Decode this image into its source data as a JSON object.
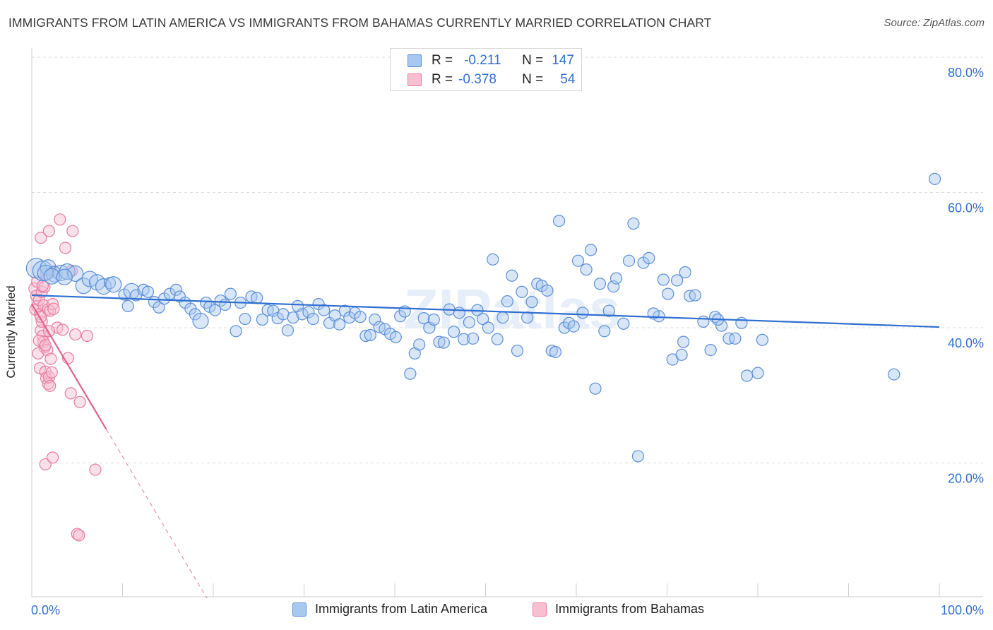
{
  "title": "IMMIGRANTS FROM LATIN AMERICA VS IMMIGRANTS FROM BAHAMAS CURRENTLY MARRIED CORRELATION CHART",
  "source": "Source: ZipAtlas.com",
  "watermark": "ZIPatlas",
  "legend": {
    "rows": [
      {
        "r_label": "R =",
        "r_value": "-0.211",
        "n_label": "N =",
        "n_value": "147"
      },
      {
        "r_label": "R =",
        "r_value": "-0.378",
        "n_label": "N =",
        "n_value": "54"
      }
    ]
  },
  "colors": {
    "blue_fill": "#a9c8f0",
    "blue_stroke": "#5b8fd8",
    "blue_line": "#2f6fd1",
    "pink_fill": "#f7bfd0",
    "pink_stroke": "#e87aa0",
    "pink_line": "#e0608e",
    "tick_label": "#2f6fd1",
    "grid": "#dcdcdc"
  },
  "chart_data": {
    "type": "scatter",
    "title": "IMMIGRANTS FROM LATIN AMERICA VS IMMIGRANTS FROM BAHAMAS CURRENTLY MARRIED CORRELATION CHART",
    "xlabel": "",
    "ylabel": "Currently Married",
    "xlim": [
      0,
      100
    ],
    "ylim": [
      0,
      80
    ],
    "x_tick_labels": [
      "0.0%",
      "100.0%"
    ],
    "y_ticks": [
      20,
      40,
      60,
      80
    ],
    "y_tick_labels": [
      "20.0%",
      "40.0%",
      "60.0%",
      "80.0%"
    ],
    "grid": true,
    "legend_position": "top-center",
    "series": [
      {
        "name": "Immigrants from Latin America",
        "trend": {
          "x": [
            0,
            100
          ],
          "y": [
            44.8,
            40.1
          ]
        },
        "points": [
          [
            0.5,
            48.8,
            3
          ],
          [
            1.2,
            48.4,
            3
          ],
          [
            1.8,
            48.9,
            2
          ],
          [
            2.5,
            47.9,
            2
          ],
          [
            3.2,
            48.1,
            2
          ],
          [
            3.9,
            48.3,
            2
          ],
          [
            1.5,
            48.1,
            2
          ],
          [
            2.2,
            47.6,
            2
          ],
          [
            4.8,
            48.0,
            2
          ],
          [
            3.6,
            47.5,
            2
          ],
          [
            5.7,
            46.2,
            2
          ],
          [
            6.4,
            47.2,
            2
          ],
          [
            7.2,
            46.7,
            2
          ],
          [
            7.9,
            46.1,
            2
          ],
          [
            8.6,
            46.6,
            1
          ],
          [
            9.0,
            46.4,
            2
          ],
          [
            10.2,
            44.9,
            1
          ],
          [
            10.6,
            43.2,
            1
          ],
          [
            11.0,
            45.4,
            2
          ],
          [
            11.5,
            44.8,
            1
          ],
          [
            12.3,
            45.6,
            1
          ],
          [
            12.8,
            45.3,
            1
          ],
          [
            13.5,
            43.8,
            1
          ],
          [
            14.0,
            43.0,
            1
          ],
          [
            14.6,
            44.3,
            1
          ],
          [
            15.2,
            45.0,
            1
          ],
          [
            15.9,
            45.6,
            1
          ],
          [
            16.3,
            44.6,
            1
          ],
          [
            16.9,
            43.7,
            1
          ],
          [
            17.5,
            42.8,
            1
          ],
          [
            18.0,
            42.0,
            1
          ],
          [
            18.6,
            41.0,
            2
          ],
          [
            19.2,
            43.7,
            1
          ],
          [
            19.6,
            43.1,
            1
          ],
          [
            20.2,
            42.6,
            1
          ],
          [
            20.8,
            44.0,
            1
          ],
          [
            21.3,
            43.4,
            1
          ],
          [
            21.9,
            45.0,
            1
          ],
          [
            22.5,
            39.5,
            1
          ],
          [
            23.0,
            43.7,
            1
          ],
          [
            23.5,
            41.3,
            1
          ],
          [
            24.2,
            44.6,
            1
          ],
          [
            24.8,
            44.4,
            1
          ],
          [
            25.4,
            41.2,
            1
          ],
          [
            26.0,
            42.6,
            1
          ],
          [
            26.6,
            42.5,
            1
          ],
          [
            27.1,
            41.4,
            1
          ],
          [
            27.7,
            42.0,
            1
          ],
          [
            28.2,
            39.6,
            1
          ],
          [
            28.8,
            41.5,
            1
          ],
          [
            29.3,
            43.2,
            1
          ],
          [
            29.8,
            42.0,
            1
          ],
          [
            30.5,
            42.3,
            1
          ],
          [
            31.0,
            41.3,
            1
          ],
          [
            31.6,
            43.5,
            1
          ],
          [
            32.2,
            42.6,
            1
          ],
          [
            32.8,
            40.7,
            1
          ],
          [
            33.4,
            41.8,
            1
          ],
          [
            33.9,
            40.5,
            1
          ],
          [
            34.5,
            42.5,
            1
          ],
          [
            35.0,
            41.5,
            1
          ],
          [
            35.6,
            42.2,
            1
          ],
          [
            36.2,
            41.6,
            1
          ],
          [
            36.8,
            38.8,
            1
          ],
          [
            37.3,
            38.9,
            1
          ],
          [
            37.8,
            41.2,
            1
          ],
          [
            38.3,
            40.1,
            1
          ],
          [
            38.9,
            39.8,
            1
          ],
          [
            39.5,
            39.1,
            1
          ],
          [
            40.1,
            38.6,
            1
          ],
          [
            40.6,
            41.7,
            1
          ],
          [
            41.1,
            42.4,
            1
          ],
          [
            41.7,
            33.2,
            1
          ],
          [
            42.2,
            36.2,
            1
          ],
          [
            42.7,
            37.5,
            1
          ],
          [
            43.2,
            41.4,
            1
          ],
          [
            43.8,
            40.0,
            1
          ],
          [
            44.3,
            41.2,
            1
          ],
          [
            44.9,
            37.9,
            1
          ],
          [
            45.4,
            37.8,
            1
          ],
          [
            46.0,
            42.7,
            1
          ],
          [
            46.5,
            39.4,
            1
          ],
          [
            47.1,
            42.2,
            1
          ],
          [
            47.6,
            38.3,
            1
          ],
          [
            48.2,
            40.8,
            1
          ],
          [
            48.6,
            38.4,
            1
          ],
          [
            49.1,
            42.6,
            1
          ],
          [
            49.7,
            41.3,
            1
          ],
          [
            50.3,
            40.0,
            1
          ],
          [
            50.8,
            50.1,
            1
          ],
          [
            51.3,
            38.3,
            1
          ],
          [
            51.9,
            41.5,
            1
          ],
          [
            52.4,
            43.9,
            1
          ],
          [
            52.9,
            47.7,
            1
          ],
          [
            53.5,
            36.6,
            1
          ],
          [
            54.0,
            45.3,
            1
          ],
          [
            54.6,
            41.5,
            1
          ],
          [
            55.1,
            43.8,
            1
          ],
          [
            55.7,
            46.5,
            1
          ],
          [
            56.2,
            46.2,
            1
          ],
          [
            56.8,
            45.5,
            1
          ],
          [
            57.3,
            36.6,
            1
          ],
          [
            57.7,
            36.4,
            1
          ],
          [
            58.1,
            55.8,
            1
          ],
          [
            58.7,
            40.0,
            1
          ],
          [
            59.2,
            40.7,
            1
          ],
          [
            59.7,
            40.2,
            1
          ],
          [
            60.2,
            49.9,
            1
          ],
          [
            60.7,
            42.2,
            1
          ],
          [
            61.1,
            48.6,
            1
          ],
          [
            61.6,
            51.5,
            1
          ],
          [
            62.1,
            31.0,
            1
          ],
          [
            62.6,
            46.5,
            1
          ],
          [
            63.1,
            39.5,
            1
          ],
          [
            63.6,
            42.5,
            1
          ],
          [
            64.1,
            46.1,
            1
          ],
          [
            64.4,
            47.3,
            1
          ],
          [
            65.2,
            40.6,
            1
          ],
          [
            65.8,
            49.9,
            1
          ],
          [
            66.3,
            55.4,
            1
          ],
          [
            66.8,
            21.0,
            1
          ],
          [
            67.4,
            49.6,
            1
          ],
          [
            68.0,
            50.3,
            1
          ],
          [
            69.1,
            41.7,
            1
          ],
          [
            69.6,
            47.1,
            1
          ],
          [
            70.1,
            45.0,
            1
          ],
          [
            70.6,
            35.3,
            1
          ],
          [
            71.1,
            47.0,
            1
          ],
          [
            71.6,
            36.0,
            1
          ],
          [
            72.0,
            48.2,
            1
          ],
          [
            72.5,
            44.7,
            1
          ],
          [
            73.1,
            44.8,
            1
          ],
          [
            74.0,
            40.9,
            1
          ],
          [
            74.8,
            36.7,
            1
          ],
          [
            75.3,
            41.6,
            1
          ],
          [
            76.0,
            40.3,
            1
          ],
          [
            76.8,
            38.4,
            1
          ],
          [
            77.5,
            38.4,
            1
          ],
          [
            78.2,
            40.7,
            1
          ],
          [
            78.8,
            32.9,
            1
          ],
          [
            80.0,
            33.3,
            1
          ],
          [
            80.5,
            38.2,
            1
          ],
          [
            95.0,
            33.1,
            1
          ],
          [
            99.5,
            62.0,
            1
          ],
          [
            75.6,
            41.2,
            1
          ],
          [
            71.8,
            37.9,
            1
          ],
          [
            68.5,
            42.1,
            1
          ]
        ]
      },
      {
        "name": "Immigrants from Bahamas",
        "trend": {
          "x": [
            0,
            8.2
          ],
          "y": [
            43.5,
            25.0
          ],
          "dashed_to": {
            "x": 19.3,
            "y": 0
          }
        },
        "points": [
          [
            0.3,
            45.8,
            1
          ],
          [
            0.5,
            44.7,
            1
          ],
          [
            0.6,
            43.2,
            1
          ],
          [
            0.4,
            42.7,
            1
          ],
          [
            0.8,
            44.1,
            1
          ],
          [
            0.9,
            42.0,
            1
          ],
          [
            1.0,
            39.6,
            1
          ],
          [
            1.1,
            40.9,
            1
          ],
          [
            1.2,
            38.8,
            1
          ],
          [
            1.3,
            37.9,
            1
          ],
          [
            1.4,
            37.1,
            1
          ],
          [
            0.7,
            36.2,
            1
          ],
          [
            0.9,
            34.0,
            1
          ],
          [
            1.5,
            33.5,
            1
          ],
          [
            1.6,
            32.5,
            1
          ],
          [
            1.8,
            31.7,
            1
          ],
          [
            1.9,
            32.7,
            1
          ],
          [
            2.0,
            31.4,
            1
          ],
          [
            1.7,
            36.7,
            1
          ],
          [
            2.1,
            35.4,
            1
          ],
          [
            2.2,
            33.4,
            1
          ],
          [
            1.0,
            41.6,
            1
          ],
          [
            0.6,
            46.8,
            1
          ],
          [
            1.1,
            45.3,
            1
          ],
          [
            1.4,
            46.0,
            1
          ],
          [
            1.2,
            46.2,
            1
          ],
          [
            1.3,
            43.3,
            1
          ],
          [
            1.8,
            42.7,
            1
          ],
          [
            2.0,
            42.5,
            1
          ],
          [
            2.3,
            43.5,
            1
          ],
          [
            1.6,
            48.0,
            1
          ],
          [
            2.5,
            48.3,
            1
          ],
          [
            2.8,
            40.0,
            1
          ],
          [
            1.0,
            53.3,
            1
          ],
          [
            1.9,
            54.3,
            1
          ],
          [
            3.1,
            56.0,
            1
          ],
          [
            3.7,
            51.8,
            1
          ],
          [
            4.5,
            54.3,
            1
          ],
          [
            3.4,
            39.7,
            1
          ],
          [
            4.0,
            35.5,
            1
          ],
          [
            4.3,
            30.3,
            1
          ],
          [
            4.8,
            39.0,
            1
          ],
          [
            5.3,
            29.0,
            1
          ],
          [
            6.1,
            38.8,
            1
          ],
          [
            7.0,
            19.0,
            1
          ],
          [
            1.5,
            19.8,
            1
          ],
          [
            2.3,
            20.8,
            1
          ],
          [
            5.0,
            9.5,
            1
          ],
          [
            5.2,
            9.3,
            1
          ],
          [
            0.8,
            38.1,
            1
          ],
          [
            1.5,
            37.4,
            1
          ],
          [
            1.9,
            39.5,
            1
          ],
          [
            2.4,
            42.8,
            1
          ],
          [
            4.4,
            48.4,
            1
          ]
        ]
      }
    ]
  },
  "bottom_legend": [
    "Immigrants from Latin America",
    "Immigrants from Bahamas"
  ]
}
